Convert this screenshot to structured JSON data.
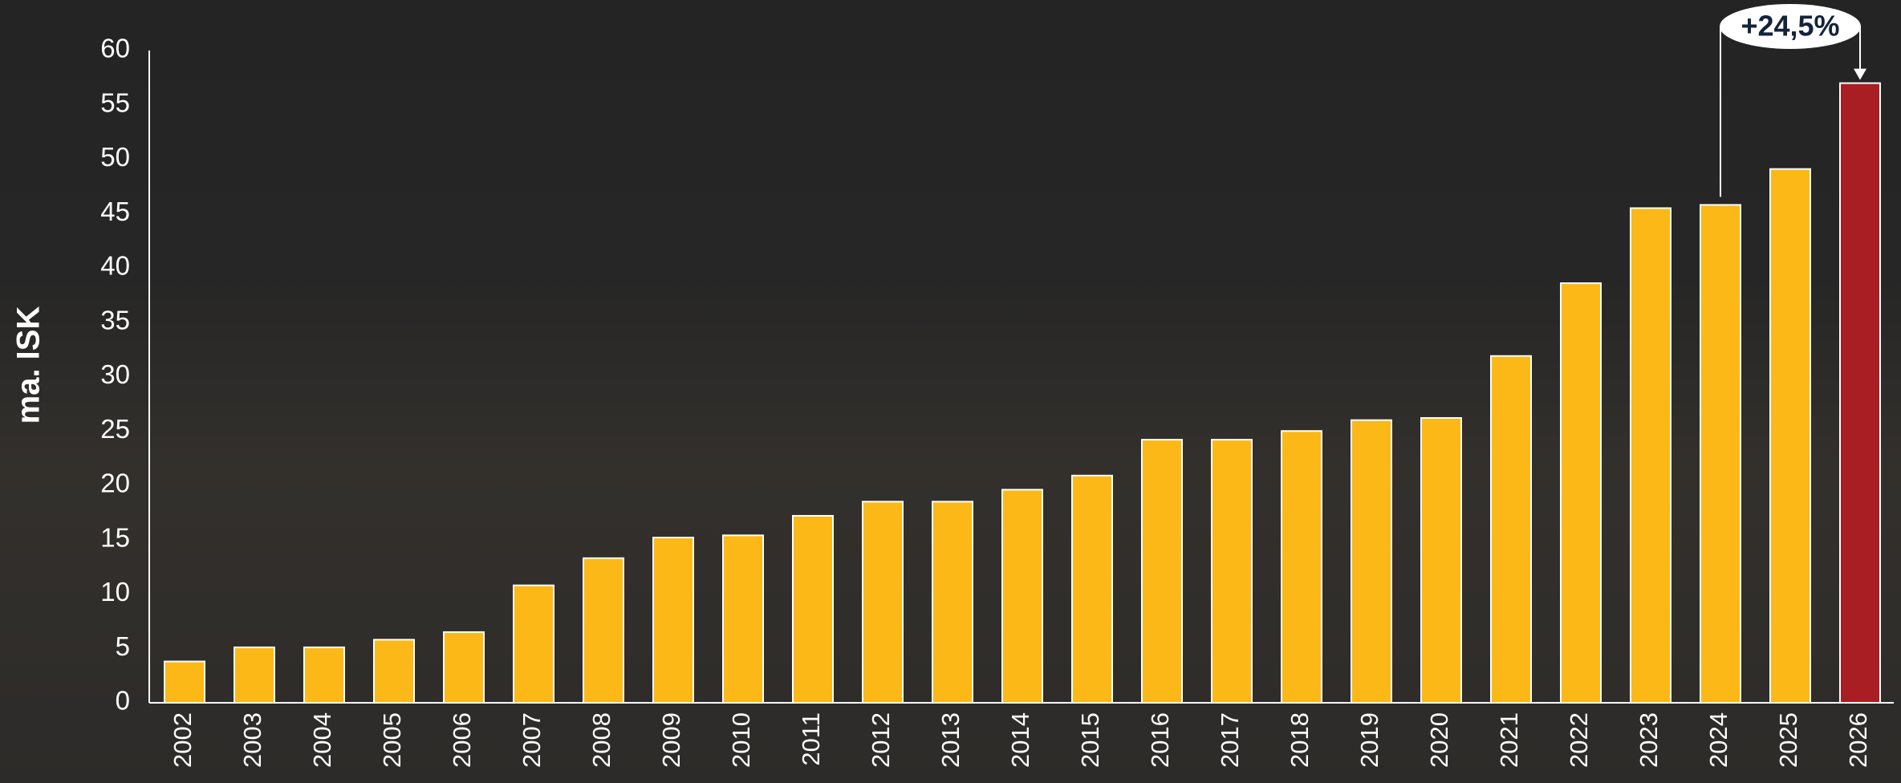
{
  "chart_data": {
    "type": "bar",
    "y_label": "ma. ISK",
    "annotation": "+24,5%",
    "categories": [
      "2002",
      "2003",
      "2004",
      "2005",
      "2006",
      "2007",
      "2008",
      "2009",
      "2010",
      "2011",
      "2012",
      "2013",
      "2014",
      "2015",
      "2016",
      "2017",
      "2018",
      "2019",
      "2020",
      "2021",
      "2022",
      "2023",
      "2024",
      "2025",
      "2026"
    ],
    "values": [
      3.8,
      5.1,
      5.1,
      5.8,
      6.5,
      10.8,
      13.3,
      15.2,
      15.4,
      17.2,
      18.5,
      18.5,
      19.6,
      20.9,
      24.2,
      24.2,
      25.0,
      26.0,
      26.2,
      31.9,
      38.6,
      45.5,
      45.8,
      49.1,
      57.0
    ],
    "colors": [
      "#fbb817",
      "#fbb817",
      "#fbb817",
      "#fbb817",
      "#fbb817",
      "#fbb817",
      "#fbb817",
      "#fbb817",
      "#fbb817",
      "#fbb817",
      "#fbb817",
      "#fbb817",
      "#fbb817",
      "#fbb817",
      "#fbb817",
      "#fbb817",
      "#fbb817",
      "#fbb817",
      "#fbb817",
      "#fbb817",
      "#fbb817",
      "#fbb817",
      "#fbb817",
      "#fbb817",
      "#a91e22"
    ],
    "ylim": [
      0,
      60
    ],
    "yticks": [
      0,
      5,
      10,
      15,
      20,
      25,
      30,
      35,
      40,
      45,
      50,
      55,
      60
    ],
    "grid": false
  }
}
